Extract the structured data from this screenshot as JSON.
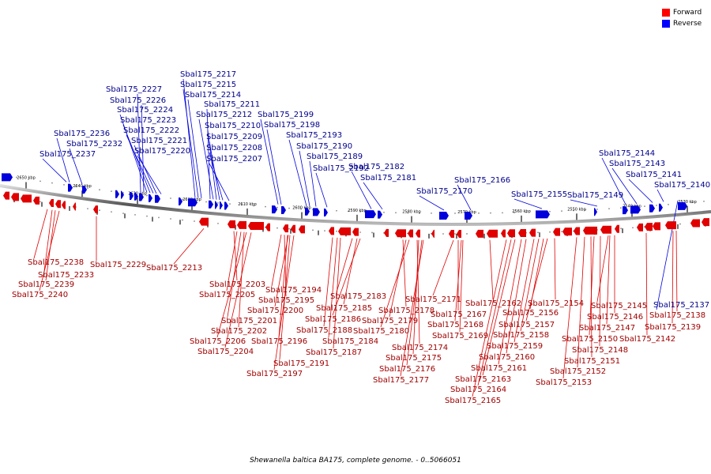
{
  "caption": "Shewanella baltica BA175, complete genome. - 0..5066051",
  "legend": [
    {
      "label": "Forward",
      "color": "#ff0000"
    },
    {
      "label": "Reverse",
      "color": "#0000ff"
    }
  ],
  "colors": {
    "forward": "#e00000",
    "reverse": "#0000dd",
    "axis": "#777777"
  },
  "scale_ticks": [
    "2650 kbp",
    "2640 kbp",
    "2630 kbp",
    "2620 kbp",
    "2610 kbp",
    "2600 kbp",
    "2590 kbp",
    "2580 kbp",
    "2570 kbp",
    "2560 kbp",
    "2550 kbp",
    "2540 kbp",
    "2530 kbp"
  ],
  "labels_reverse": [
    "Sbal175_2217",
    "Sbal175_2215",
    "Sbal175_2214",
    "Sbal175_2227",
    "Sbal175_2226",
    "Sbal175_2224",
    "Sbal175_2211",
    "Sbal175_2212",
    "Sbal175_2199",
    "Sbal175_2223",
    "Sbal175_2210",
    "Sbal175_2198",
    "Sbal175_2222",
    "Sbal175_2236",
    "Sbal175_2209",
    "Sbal175_2193",
    "Sbal175_2221",
    "Sbal175_2232",
    "Sbal175_2208",
    "Sbal175_2190",
    "Sbal175_2220",
    "Sbal175_2237",
    "Sbal175_2189",
    "Sbal175_2207",
    "Sbal175_2182",
    "Sbal175_2192",
    "Sbal175_2181",
    "Sbal175_2166",
    "Sbal175_2170",
    "Sbal175_2155",
    "Sbal175_2149",
    "Sbal175_2144",
    "Sbal175_2143",
    "Sbal175_2141",
    "Sbal175_2140",
    "Sbal175_2137"
  ],
  "labels_forward": [
    "Sbal175_2238",
    "Sbal175_2229",
    "Sbal175_2233",
    "Sbal175_2213",
    "Sbal175_2239",
    "Sbal175_2240",
    "Sbal175_2203",
    "Sbal175_2194",
    "Sbal175_2205",
    "Sbal175_2195",
    "Sbal175_2183",
    "Sbal175_2200",
    "Sbal175_2185",
    "Sbal175_2171",
    "Sbal175_2201",
    "Sbal175_2186",
    "Sbal175_2178",
    "Sbal175_2167",
    "Sbal175_2162",
    "Sbal175_2154",
    "Sbal175_2145",
    "Sbal175_2202",
    "Sbal175_2188",
    "Sbal175_2179",
    "Sbal175_2168",
    "Sbal175_2156",
    "Sbal175_2146",
    "Sbal175_2206",
    "Sbal175_2196",
    "Sbal175_2180",
    "Sbal175_2157",
    "Sbal175_2147",
    "Sbal175_2138",
    "Sbal175_2204",
    "Sbal175_2184",
    "Sbal175_2169",
    "Sbal175_2158",
    "Sbal175_2150",
    "Sbal175_2139",
    "Sbal175_2187",
    "Sbal175_2174",
    "Sbal175_2159",
    "Sbal175_2148",
    "Sbal175_2142",
    "Sbal175_2191",
    "Sbal175_2175",
    "Sbal175_2160",
    "Sbal175_2151",
    "Sbal175_2197",
    "Sbal175_2176",
    "Sbal175_2161",
    "Sbal175_2152",
    "Sbal175_2177",
    "Sbal175_2163",
    "Sbal175_2153",
    "Sbal175_2164",
    "Sbal175_2165"
  ]
}
